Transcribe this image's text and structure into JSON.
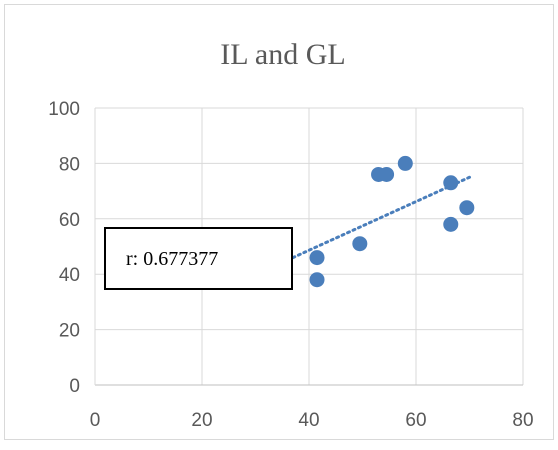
{
  "chart_data": {
    "type": "scatter",
    "title": "IL and GL",
    "xlabel": "",
    "ylabel": "",
    "xlim": [
      0,
      80
    ],
    "ylim": [
      0,
      100
    ],
    "x_ticks": [
      0,
      20,
      40,
      60,
      80
    ],
    "y_ticks": [
      0,
      20,
      40,
      60,
      80,
      100
    ],
    "grid": true,
    "series": [
      {
        "color": "#4a7ebb",
        "points": [
          {
            "x": 41.5,
            "y": 46
          },
          {
            "x": 41.5,
            "y": 38
          },
          {
            "x": 49.5,
            "y": 51
          },
          {
            "x": 53,
            "y": 76
          },
          {
            "x": 54.5,
            "y": 76
          },
          {
            "x": 58,
            "y": 80
          },
          {
            "x": 66.5,
            "y": 73
          },
          {
            "x": 66.5,
            "y": 58
          },
          {
            "x": 69.5,
            "y": 64
          }
        ]
      }
    ],
    "trendline": {
      "style": "dotted",
      "color": "#4a7ebb",
      "x": [
        37,
        70
      ],
      "y": [
        46,
        75
      ]
    },
    "annotation": {
      "text": "r: 0.677377"
    }
  }
}
